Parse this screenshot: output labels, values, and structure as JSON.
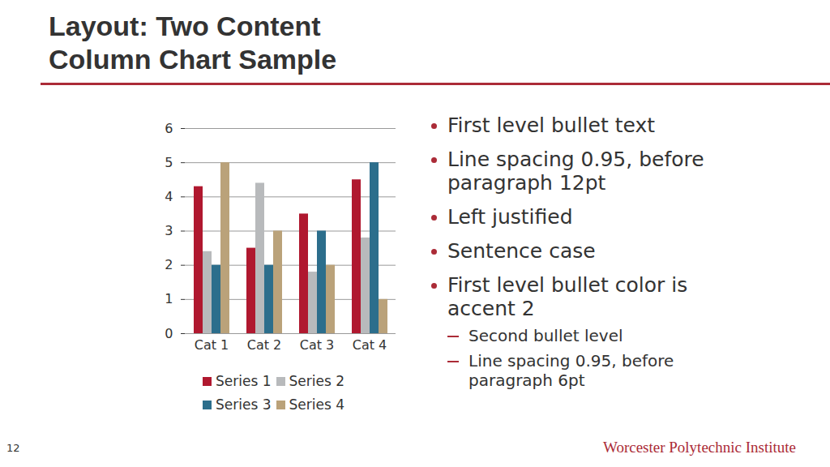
{
  "slide": {
    "title_lines": [
      "Layout: Two Content",
      "Column Chart Sample"
    ],
    "bullets": [
      {
        "level": 1,
        "text": "First level bullet text"
      },
      {
        "level": 1,
        "text": "Line spacing 0.95, before paragraph 12pt"
      },
      {
        "level": 1,
        "text": "Left justified"
      },
      {
        "level": 1,
        "text": "Sentence case"
      },
      {
        "level": 1,
        "text": "First level bullet color is accent 2"
      },
      {
        "level": 2,
        "text": "Second bullet level"
      },
      {
        "level": 2,
        "text": "Line spacing 0.95, before paragraph 6pt"
      }
    ],
    "page_number": "12",
    "footer": "Worcester Polytechnic Institute"
  },
  "chart_data": {
    "type": "bar",
    "categories": [
      "Cat 1",
      "Cat 2",
      "Cat 3",
      "Cat 4"
    ],
    "series": [
      {
        "name": "Series 1",
        "color": "#b0182f",
        "values": [
          4.3,
          2.5,
          3.5,
          4.5
        ]
      },
      {
        "name": "Series 2",
        "color": "#b8babc",
        "values": [
          2.4,
          4.4,
          1.8,
          2.8
        ]
      },
      {
        "name": "Series 3",
        "color": "#2c6e8c",
        "values": [
          2,
          2,
          3,
          5
        ]
      },
      {
        "name": "Series 4",
        "color": "#baa27a",
        "values": [
          5,
          3,
          2,
          1
        ]
      }
    ],
    "ylim": [
      0,
      6
    ],
    "yticks": [
      0,
      1,
      2,
      3,
      4,
      5,
      6
    ],
    "grid": true,
    "legend": "bottom"
  }
}
